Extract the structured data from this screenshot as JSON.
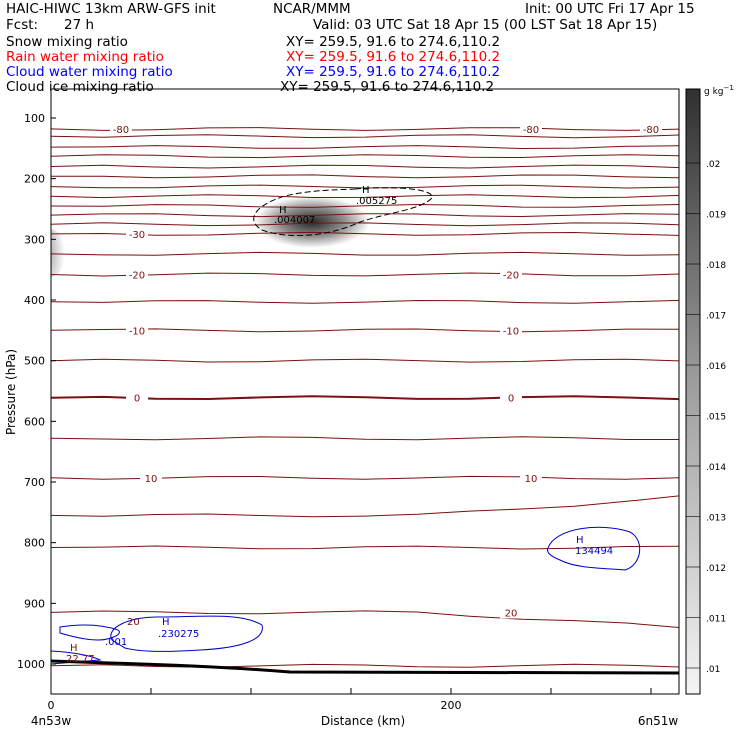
{
  "header": {
    "model": "HAIC-HIWC 13km ARW-GFS init",
    "org": "NCAR/MMM",
    "init": "Init: 00 UTC Fri 17 Apr 15",
    "fcst_label": "Fcst:",
    "fcst_value": "27 h",
    "valid": "Valid: 03 UTC Sat 18 Apr 15 (00 LST Sat 18 Apr 15)"
  },
  "fields": [
    {
      "name": "Snow mixing ratio",
      "xy": "XY= 259.5, 91.6 to 274.6,110.2",
      "color": "#000000"
    },
    {
      "name": "Rain water mixing ratio",
      "xy": "XY= 259.5, 91.6 to 274.6,110.2",
      "color": "#ff0000"
    },
    {
      "name": "Cloud water mixing ratio",
      "xy": "XY= 259.5, 91.6 to 274.6,110.2",
      "color": "#0000ff"
    },
    {
      "name": "Cloud ice mixing ratio",
      "xy": "XY= 259.5, 91.6 to 274.6,110.2",
      "color": "#000000"
    }
  ],
  "colors": {
    "isotherm": "#7a1010",
    "cloud_water": "#0000cc",
    "ground": "#000000"
  },
  "chart_data": {
    "type": "heatmap",
    "title": "",
    "xlabel": "Distance (km)",
    "ylabel": "Pressure (hPa)",
    "xlim": [
      0,
      314
    ],
    "ylim": [
      1050,
      75
    ],
    "x_ticks": [
      0,
      200
    ],
    "y_ticks": [
      100,
      200,
      300,
      400,
      500,
      600,
      700,
      800,
      900,
      1000
    ],
    "x_end_labels": {
      "left": "4n53w",
      "right": "6n51w"
    },
    "grid": false,
    "isotherms": [
      {
        "level": 118,
        "tail": 118,
        "labels": [
          {
            "text": "-80",
            "x": 35
          },
          {
            "text": "-80",
            "x": 240
          },
          {
            "text": "-80",
            "x": 300
          }
        ]
      },
      {
        "level": 130,
        "tail": 130,
        "labels": []
      },
      {
        "level": 148,
        "tail": 148,
        "labels": []
      },
      {
        "level": 163,
        "tail": 163,
        "labels": []
      },
      {
        "level": 180,
        "tail": 180,
        "labels": []
      },
      {
        "level": 196,
        "tail": 196,
        "labels": []
      },
      {
        "level": 213,
        "tail": 213,
        "labels": []
      },
      {
        "level": 229,
        "tail": 229,
        "labels": []
      },
      {
        "level": 245,
        "tail": 245,
        "labels": []
      },
      {
        "level": 260,
        "tail": 260,
        "labels": []
      },
      {
        "level": 275,
        "tail": 275,
        "labels": []
      },
      {
        "level": 291,
        "tail": 291,
        "labels": [
          {
            "text": "-30",
            "x": 43
          }
        ]
      },
      {
        "level": 324,
        "tail": 324,
        "labels": []
      },
      {
        "level": 358,
        "tail": 358,
        "labels": [
          {
            "text": "-20",
            "x": 43
          },
          {
            "text": "-20",
            "x": 230
          }
        ]
      },
      {
        "level": 403,
        "tail": 403,
        "labels": []
      },
      {
        "level": 450,
        "tail": 450,
        "labels": [
          {
            "text": "-10",
            "x": 43
          },
          {
            "text": "-10",
            "x": 230
          }
        ]
      },
      {
        "level": 500,
        "tail": 500,
        "labels": []
      },
      {
        "level": 561,
        "tail": 561,
        "labels": [
          {
            "text": "0",
            "x": 43
          },
          {
            "text": "0",
            "x": 230
          }
        ]
      },
      {
        "level": 628,
        "tail": 628,
        "labels": []
      },
      {
        "level": 693,
        "tail": 693,
        "labels": [
          {
            "text": "10",
            "x": 50
          },
          {
            "text": "10",
            "x": 240
          }
        ]
      },
      {
        "level": 755,
        "tail": 725,
        "labels": []
      },
      {
        "level": 808,
        "tail": 808,
        "labels": []
      },
      {
        "level": 915,
        "tail": 940,
        "labels": [
          {
            "text": "20",
            "x": 230
          }
        ]
      },
      {
        "level": 1003,
        "tail": 1003,
        "labels": []
      }
    ],
    "labels": {
      "inline_20_left": "20",
      "inline_001": ".001",
      "cloud_max_bottom": ".230275",
      "cloud_max_right": "134494",
      "snow_max": ".005275",
      "ice_max": ".004007",
      "rain_max": "22.77",
      "H": "H"
    },
    "colorbar": {
      "unit": "g kg",
      "unit_sup": "−1",
      "ticks": [
        ".02",
        ".019",
        ".018",
        ".017",
        ".016",
        ".015",
        ".014",
        ".013",
        ".012",
        ".011",
        ".01"
      ]
    }
  }
}
